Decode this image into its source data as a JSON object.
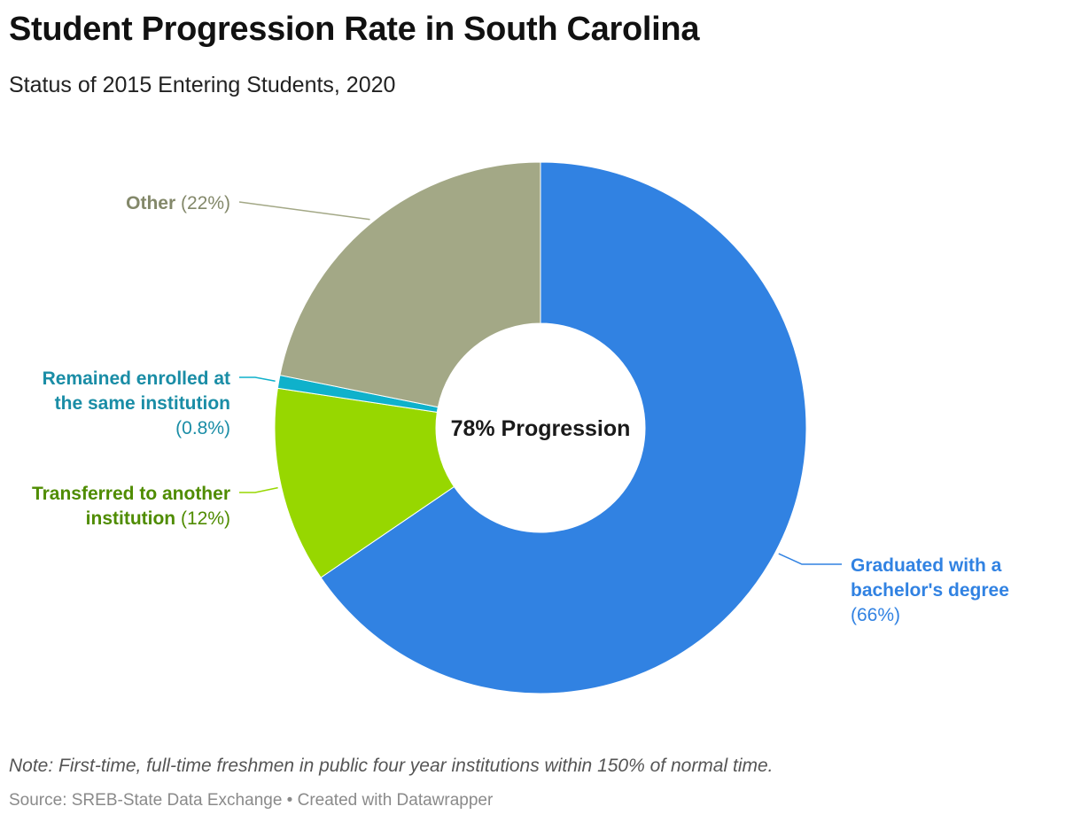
{
  "title": "Student Progression Rate in South Carolina",
  "subtitle": "Status of 2015 Entering Students, 2020",
  "note": "Note: First-time, full-time freshmen in public four year institutions within 150% of normal time.",
  "source": "Source: SREB-State Data Exchange",
  "credit": "Created with Datawrapper",
  "separator": "•",
  "chart_data": {
    "type": "pie",
    "donut": true,
    "center_label": "78% Progression",
    "title": "Student Progression Rate in South Carolina",
    "subtitle": "Status of 2015 Entering Students, 2020",
    "slices": [
      {
        "label_lines": [
          "Graduated with a",
          "bachelor's degree"
        ],
        "value_label": "(66%)",
        "value": 66,
        "color": "#3182e2"
      },
      {
        "label_lines": [
          "Transferred to another",
          "institution"
        ],
        "value_label": "(12%)",
        "value": 12,
        "color": "#97d700",
        "text_color": "#4f8c00"
      },
      {
        "label_lines": [
          "Remained enrolled at",
          "the same institution"
        ],
        "value_label": "(0.8%)",
        "value": 0.8,
        "color": "#0fb1cb",
        "text_color": "#1a8da6"
      },
      {
        "label_lines": [
          "Other"
        ],
        "value_label": "(22%)",
        "value": 22,
        "color": "#a3a886",
        "text_color": "#83886a"
      }
    ]
  }
}
